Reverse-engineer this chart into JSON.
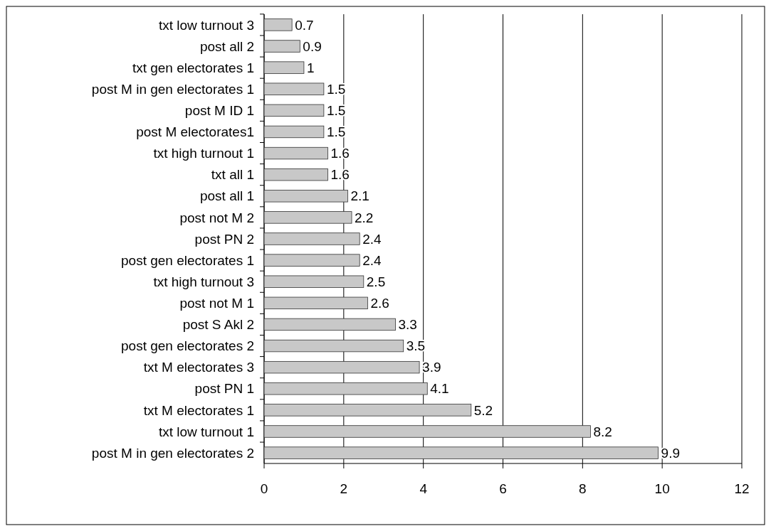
{
  "chart_data": {
    "type": "bar",
    "orientation": "horizontal",
    "categories": [
      "txt low turnout 3",
      "post all 2",
      "txt gen electorates 1",
      "post M in gen electorates 1",
      "post M ID 1",
      "post M electorates1",
      "txt high turnout 1",
      "txt all 1",
      "post all 1",
      "post not M 2",
      "post PN 2",
      "post gen electorates 1",
      "txt high turnout 3",
      "post not M 1",
      "post S Akl 2",
      "post gen electorates 2",
      "txt M electorates 3",
      "post PN 1",
      "txt M electorates 1",
      "txt low turnout 1",
      "post M in gen electorates 2"
    ],
    "values": [
      0.7,
      0.9,
      1,
      1.5,
      1.5,
      1.5,
      1.6,
      1.6,
      2.1,
      2.2,
      2.4,
      2.4,
      2.5,
      2.6,
      3.3,
      3.5,
      3.9,
      4.1,
      5.2,
      8.2,
      9.9
    ],
    "color": "#c8c8c8",
    "xlim": [
      0,
      12
    ],
    "xticks": [
      0,
      2,
      4,
      6,
      8,
      10,
      12
    ],
    "grid": "x",
    "data_labels": true
  }
}
